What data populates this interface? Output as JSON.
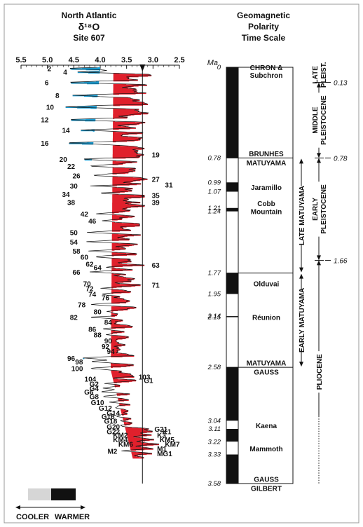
{
  "left_panel": {
    "title_1": "North Atlantic",
    "title_2": "δ¹⁸O",
    "title_3": "Site 607",
    "x_ticks": [
      "5.5",
      "5.0",
      "4.5",
      "4.0",
      "3.5",
      "3.0",
      "2.5"
    ],
    "x_tick_values": [
      5.5,
      5.0,
      4.5,
      4.0,
      3.5,
      3.0,
      2.5
    ],
    "x_range": [
      5.5,
      2.5
    ],
    "reference_line_value": 3.2,
    "cool_color": "#1a9fd6",
    "warm_color": "#e0202c",
    "cool_stage_labels": [
      {
        "label": "2",
        "x": 4.9,
        "t": 0.01
      },
      {
        "label": "4",
        "x": 4.6,
        "t": 0.04
      },
      {
        "label": "6",
        "x": 4.95,
        "t": 0.13
      },
      {
        "label": "8",
        "x": 4.75,
        "t": 0.24
      },
      {
        "label": "10",
        "x": 4.85,
        "t": 0.34
      },
      {
        "label": "12",
        "x": 4.95,
        "t": 0.45
      },
      {
        "label": "14",
        "x": 4.55,
        "t": 0.54
      },
      {
        "label": "16",
        "x": 4.95,
        "t": 0.65
      },
      {
        "label": "20",
        "x": 4.6,
        "t": 0.79
      },
      {
        "label": "22",
        "x": 4.45,
        "t": 0.85
      },
      {
        "label": "26",
        "x": 4.35,
        "t": 0.93
      },
      {
        "label": "30",
        "x": 4.4,
        "t": 1.02
      },
      {
        "label": "34",
        "x": 4.55,
        "t": 1.09
      },
      {
        "label": "38",
        "x": 4.45,
        "t": 1.16
      },
      {
        "label": "42",
        "x": 4.2,
        "t": 1.26
      },
      {
        "label": "46",
        "x": 4.05,
        "t": 1.32
      },
      {
        "label": "50",
        "x": 4.4,
        "t": 1.42
      },
      {
        "label": "54",
        "x": 4.4,
        "t": 1.5
      },
      {
        "label": "58",
        "x": 4.35,
        "t": 1.58
      },
      {
        "label": "60",
        "x": 4.2,
        "t": 1.63
      },
      {
        "label": "62",
        "x": 4.1,
        "t": 1.69
      },
      {
        "label": "64",
        "x": 3.95,
        "t": 1.72
      },
      {
        "label": "66",
        "x": 4.35,
        "t": 1.76
      },
      {
        "label": "70",
        "x": 4.15,
        "t": 1.86
      },
      {
        "label": "72",
        "x": 4.1,
        "t": 1.9
      },
      {
        "label": "74",
        "x": 4.05,
        "t": 1.95
      },
      {
        "label": "76",
        "x": 3.8,
        "t": 1.98
      },
      {
        "label": "78",
        "x": 4.25,
        "t": 2.04
      },
      {
        "label": "80",
        "x": 3.95,
        "t": 2.1
      },
      {
        "label": "82",
        "x": 4.4,
        "t": 2.15
      },
      {
        "label": "84",
        "x": 3.75,
        "t": 2.19
      },
      {
        "label": "86",
        "x": 4.05,
        "t": 2.25
      },
      {
        "label": "88",
        "x": 3.95,
        "t": 2.3
      },
      {
        "label": "90",
        "x": 3.75,
        "t": 2.35
      },
      {
        "label": "92",
        "x": 3.8,
        "t": 2.4
      },
      {
        "label": "94",
        "x": 3.7,
        "t": 2.44
      },
      {
        "label": "96",
        "x": 4.45,
        "t": 2.5
      },
      {
        "label": "98",
        "x": 4.3,
        "t": 2.53
      },
      {
        "label": "100",
        "x": 4.3,
        "t": 2.59
      },
      {
        "label": "104",
        "x": 4.05,
        "t": 2.68
      },
      {
        "label": "G2",
        "x": 4.0,
        "t": 2.72
      },
      {
        "label": "G4",
        "x": 4.0,
        "t": 2.76
      },
      {
        "label": "G6",
        "x": 4.1,
        "t": 2.79
      },
      {
        "label": "G8",
        "x": 4.0,
        "t": 2.83
      },
      {
        "label": "G10",
        "x": 3.9,
        "t": 2.88
      },
      {
        "label": "G12",
        "x": 3.75,
        "t": 2.93
      },
      {
        "label": "G14",
        "x": 3.6,
        "t": 2.97
      },
      {
        "label": "G16",
        "x": 3.7,
        "t": 3.0
      },
      {
        "label": "G18",
        "x": 3.65,
        "t": 3.04
      },
      {
        "label": "G20",
        "x": 3.6,
        "t": 3.09
      },
      {
        "label": "G22",
        "x": 3.6,
        "t": 3.13
      },
      {
        "label": "KM2",
        "x": 3.45,
        "t": 3.16
      },
      {
        "label": "KM4",
        "x": 3.45,
        "t": 3.2
      },
      {
        "label": "KM6",
        "x": 3.35,
        "t": 3.24
      },
      {
        "label": "M2",
        "x": 3.65,
        "t": 3.3
      }
    ],
    "warm_stage_labels": [
      {
        "label": "19",
        "x": 3.05,
        "t": 0.75
      },
      {
        "label": "27",
        "x": 3.05,
        "t": 0.96
      },
      {
        "label": "31",
        "x": 2.8,
        "t": 1.01
      },
      {
        "label": "35",
        "x": 3.05,
        "t": 1.1
      },
      {
        "label": "39",
        "x": 3.05,
        "t": 1.16
      },
      {
        "label": "63",
        "x": 3.05,
        "t": 1.7
      },
      {
        "label": "71",
        "x": 3.05,
        "t": 1.87
      },
      {
        "label": "103",
        "x": 3.3,
        "t": 2.66
      },
      {
        "label": "G1",
        "x": 3.2,
        "t": 2.69
      },
      {
        "label": "G21",
        "x": 3.0,
        "t": 3.11
      },
      {
        "label": "K1",
        "x": 2.85,
        "t": 3.13
      },
      {
        "label": "K3",
        "x": 2.95,
        "t": 3.16
      },
      {
        "label": "KM5",
        "x": 2.9,
        "t": 3.2
      },
      {
        "label": "KM7",
        "x": 2.8,
        "t": 3.24
      },
      {
        "label": "M1",
        "x": 2.95,
        "t": 3.28
      },
      {
        "label": "MG1",
        "x": 2.95,
        "t": 3.32
      }
    ],
    "legend_cool": "COOLER",
    "legend_warm": "WARMER"
  },
  "right_panel": {
    "title_1": "Geomagnetic",
    "title_2": "Polarity",
    "title_3": "Time Scale",
    "unit_label": "Ma",
    "age_range": [
      0,
      3.58
    ],
    "column_header_1": "CHRON &",
    "column_header_2": "Subchron",
    "age_labels": [
      {
        "text": "0",
        "t": 0.0
      },
      {
        "text": "0.78",
        "t": 0.78
      },
      {
        "text": "0.99",
        "t": 0.99
      },
      {
        "text": "1.07",
        "t": 1.07
      },
      {
        "text": "1.21",
        "t": 1.21
      },
      {
        "text": "1.24",
        "t": 1.24
      },
      {
        "text": "1.77",
        "t": 1.77
      },
      {
        "text": "1.95",
        "t": 1.95
      },
      {
        "text": "2.14",
        "t": 2.14
      },
      {
        "text": "2.15",
        "t": 2.15
      },
      {
        "text": "2.58",
        "t": 2.58
      },
      {
        "text": "3.04",
        "t": 3.04
      },
      {
        "text": "3.11",
        "t": 3.11
      },
      {
        "text": "3.22",
        "t": 3.22
      },
      {
        "text": "3.33",
        "t": 3.33
      },
      {
        "text": "3.58",
        "t": 3.58
      }
    ],
    "polarity_intervals": [
      {
        "from": 0.0,
        "to": 0.78,
        "normal": true
      },
      {
        "from": 0.78,
        "to": 0.99,
        "normal": false
      },
      {
        "from": 0.99,
        "to": 1.07,
        "normal": true
      },
      {
        "from": 1.07,
        "to": 1.21,
        "normal": false
      },
      {
        "from": 1.21,
        "to": 1.24,
        "normal": true
      },
      {
        "from": 1.24,
        "to": 1.77,
        "normal": false
      },
      {
        "from": 1.77,
        "to": 1.95,
        "normal": true
      },
      {
        "from": 1.95,
        "to": 2.14,
        "normal": false
      },
      {
        "from": 2.14,
        "to": 2.15,
        "normal": true
      },
      {
        "from": 2.15,
        "to": 2.58,
        "normal": false
      },
      {
        "from": 2.58,
        "to": 3.04,
        "normal": true
      },
      {
        "from": 3.04,
        "to": 3.11,
        "normal": false
      },
      {
        "from": 3.11,
        "to": 3.22,
        "normal": true
      },
      {
        "from": 3.22,
        "to": 3.33,
        "normal": false
      },
      {
        "from": 3.33,
        "to": 3.58,
        "normal": true
      }
    ],
    "chron_labels": [
      {
        "text": "BRUNHES",
        "t": 0.74
      },
      {
        "text": "MATUYAMA",
        "t": 0.82
      },
      {
        "text": "Jaramillo",
        "t": 1.03
      },
      {
        "text": "Cobb",
        "t": 1.17
      },
      {
        "text": "Mountain",
        "t": 1.24
      },
      {
        "text": "Olduvai",
        "t": 1.86
      },
      {
        "text": "Réunion",
        "t": 2.15
      },
      {
        "text": "MATUYAMA",
        "t": 2.54
      },
      {
        "text": "GAUSS",
        "t": 2.62
      },
      {
        "text": "Kaena",
        "t": 3.08
      },
      {
        "text": "Mammoth",
        "t": 3.28
      },
      {
        "text": "GAUSS",
        "t": 3.54
      },
      {
        "text": "GILBERT",
        "t": 3.62
      }
    ],
    "subdivisions": [
      {
        "text": "LATE MATUYAMA",
        "from": 0.78,
        "to": 1.77
      },
      {
        "text": "EARLY MATUYAMA",
        "from": 1.77,
        "to": 2.58
      }
    ],
    "epochs": [
      {
        "text": "LATE",
        "text2": "PLEIST.",
        "from": 0.0,
        "to": 0.13
      },
      {
        "text": "MIDDLE",
        "text2": "PLEISTOCENE",
        "from": 0.13,
        "to": 0.78
      },
      {
        "text": "EARLY",
        "text2": "PLEISTOCENE",
        "from": 0.78,
        "to": 1.66
      },
      {
        "text": "PLIOCENE",
        "text2": "",
        "from": 1.66,
        "to": 3.58
      }
    ],
    "boundary_labels": [
      {
        "text": "0.13",
        "t": 0.13
      },
      {
        "text": "0.78",
        "t": 0.78
      },
      {
        "text": "1.66",
        "t": 1.66
      }
    ]
  }
}
